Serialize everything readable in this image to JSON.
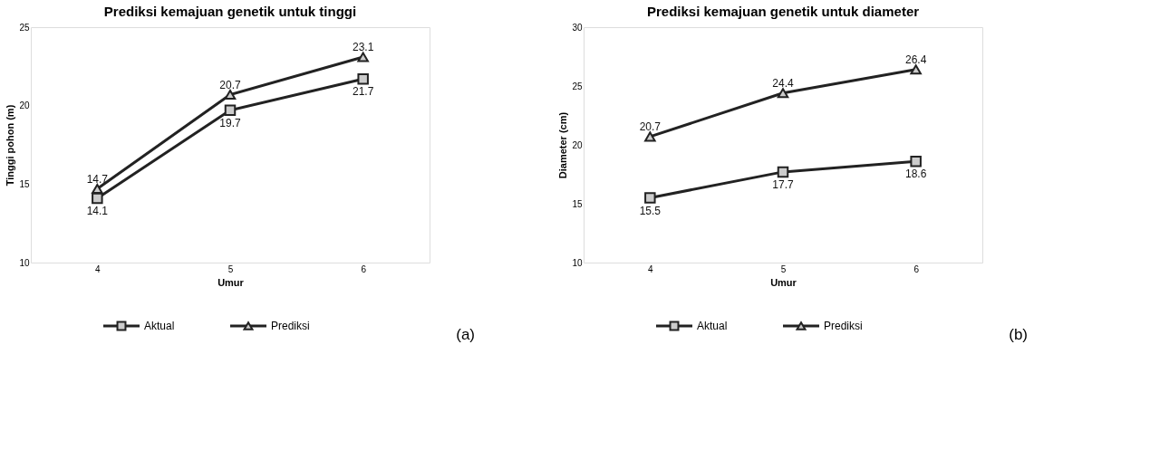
{
  "chart_data": [
    {
      "type": "line",
      "title": "Prediksi kemajuan genetik untuk tinggi",
      "xlabel": "Umur",
      "ylabel": "Tinggi pohon (m)",
      "categories": [
        "4",
        "5",
        "6"
      ],
      "ylim": [
        10,
        25
      ],
      "yticks": [
        10,
        15,
        20,
        25
      ],
      "data_labels": true,
      "legend": "bottom",
      "annotations": [
        "(a)"
      ],
      "series": [
        {
          "name": "Aktual",
          "color": "#222222",
          "marker": "square",
          "values": [
            14.1,
            19.7,
            21.7
          ]
        },
        {
          "name": "Prediksi",
          "color": "#222222",
          "marker": "triangle",
          "values": [
            14.7,
            20.7,
            23.1
          ]
        }
      ]
    },
    {
      "type": "line",
      "title": "Prediksi kemajuan genetik untuk diameter",
      "xlabel": "Umur",
      "ylabel": "Diameter (cm)",
      "categories": [
        "4",
        "5",
        "6"
      ],
      "ylim": [
        10,
        30
      ],
      "yticks": [
        10,
        15,
        20,
        25,
        30
      ],
      "data_labels": true,
      "legend": "bottom",
      "annotations": [
        "(b)"
      ],
      "series": [
        {
          "name": "Aktual",
          "color": "#222222",
          "marker": "square",
          "values": [
            15.5,
            17.7,
            18.6
          ]
        },
        {
          "name": "Prediksi",
          "color": "#222222",
          "marker": "triangle",
          "values": [
            20.7,
            24.4,
            26.4
          ]
        }
      ]
    }
  ]
}
